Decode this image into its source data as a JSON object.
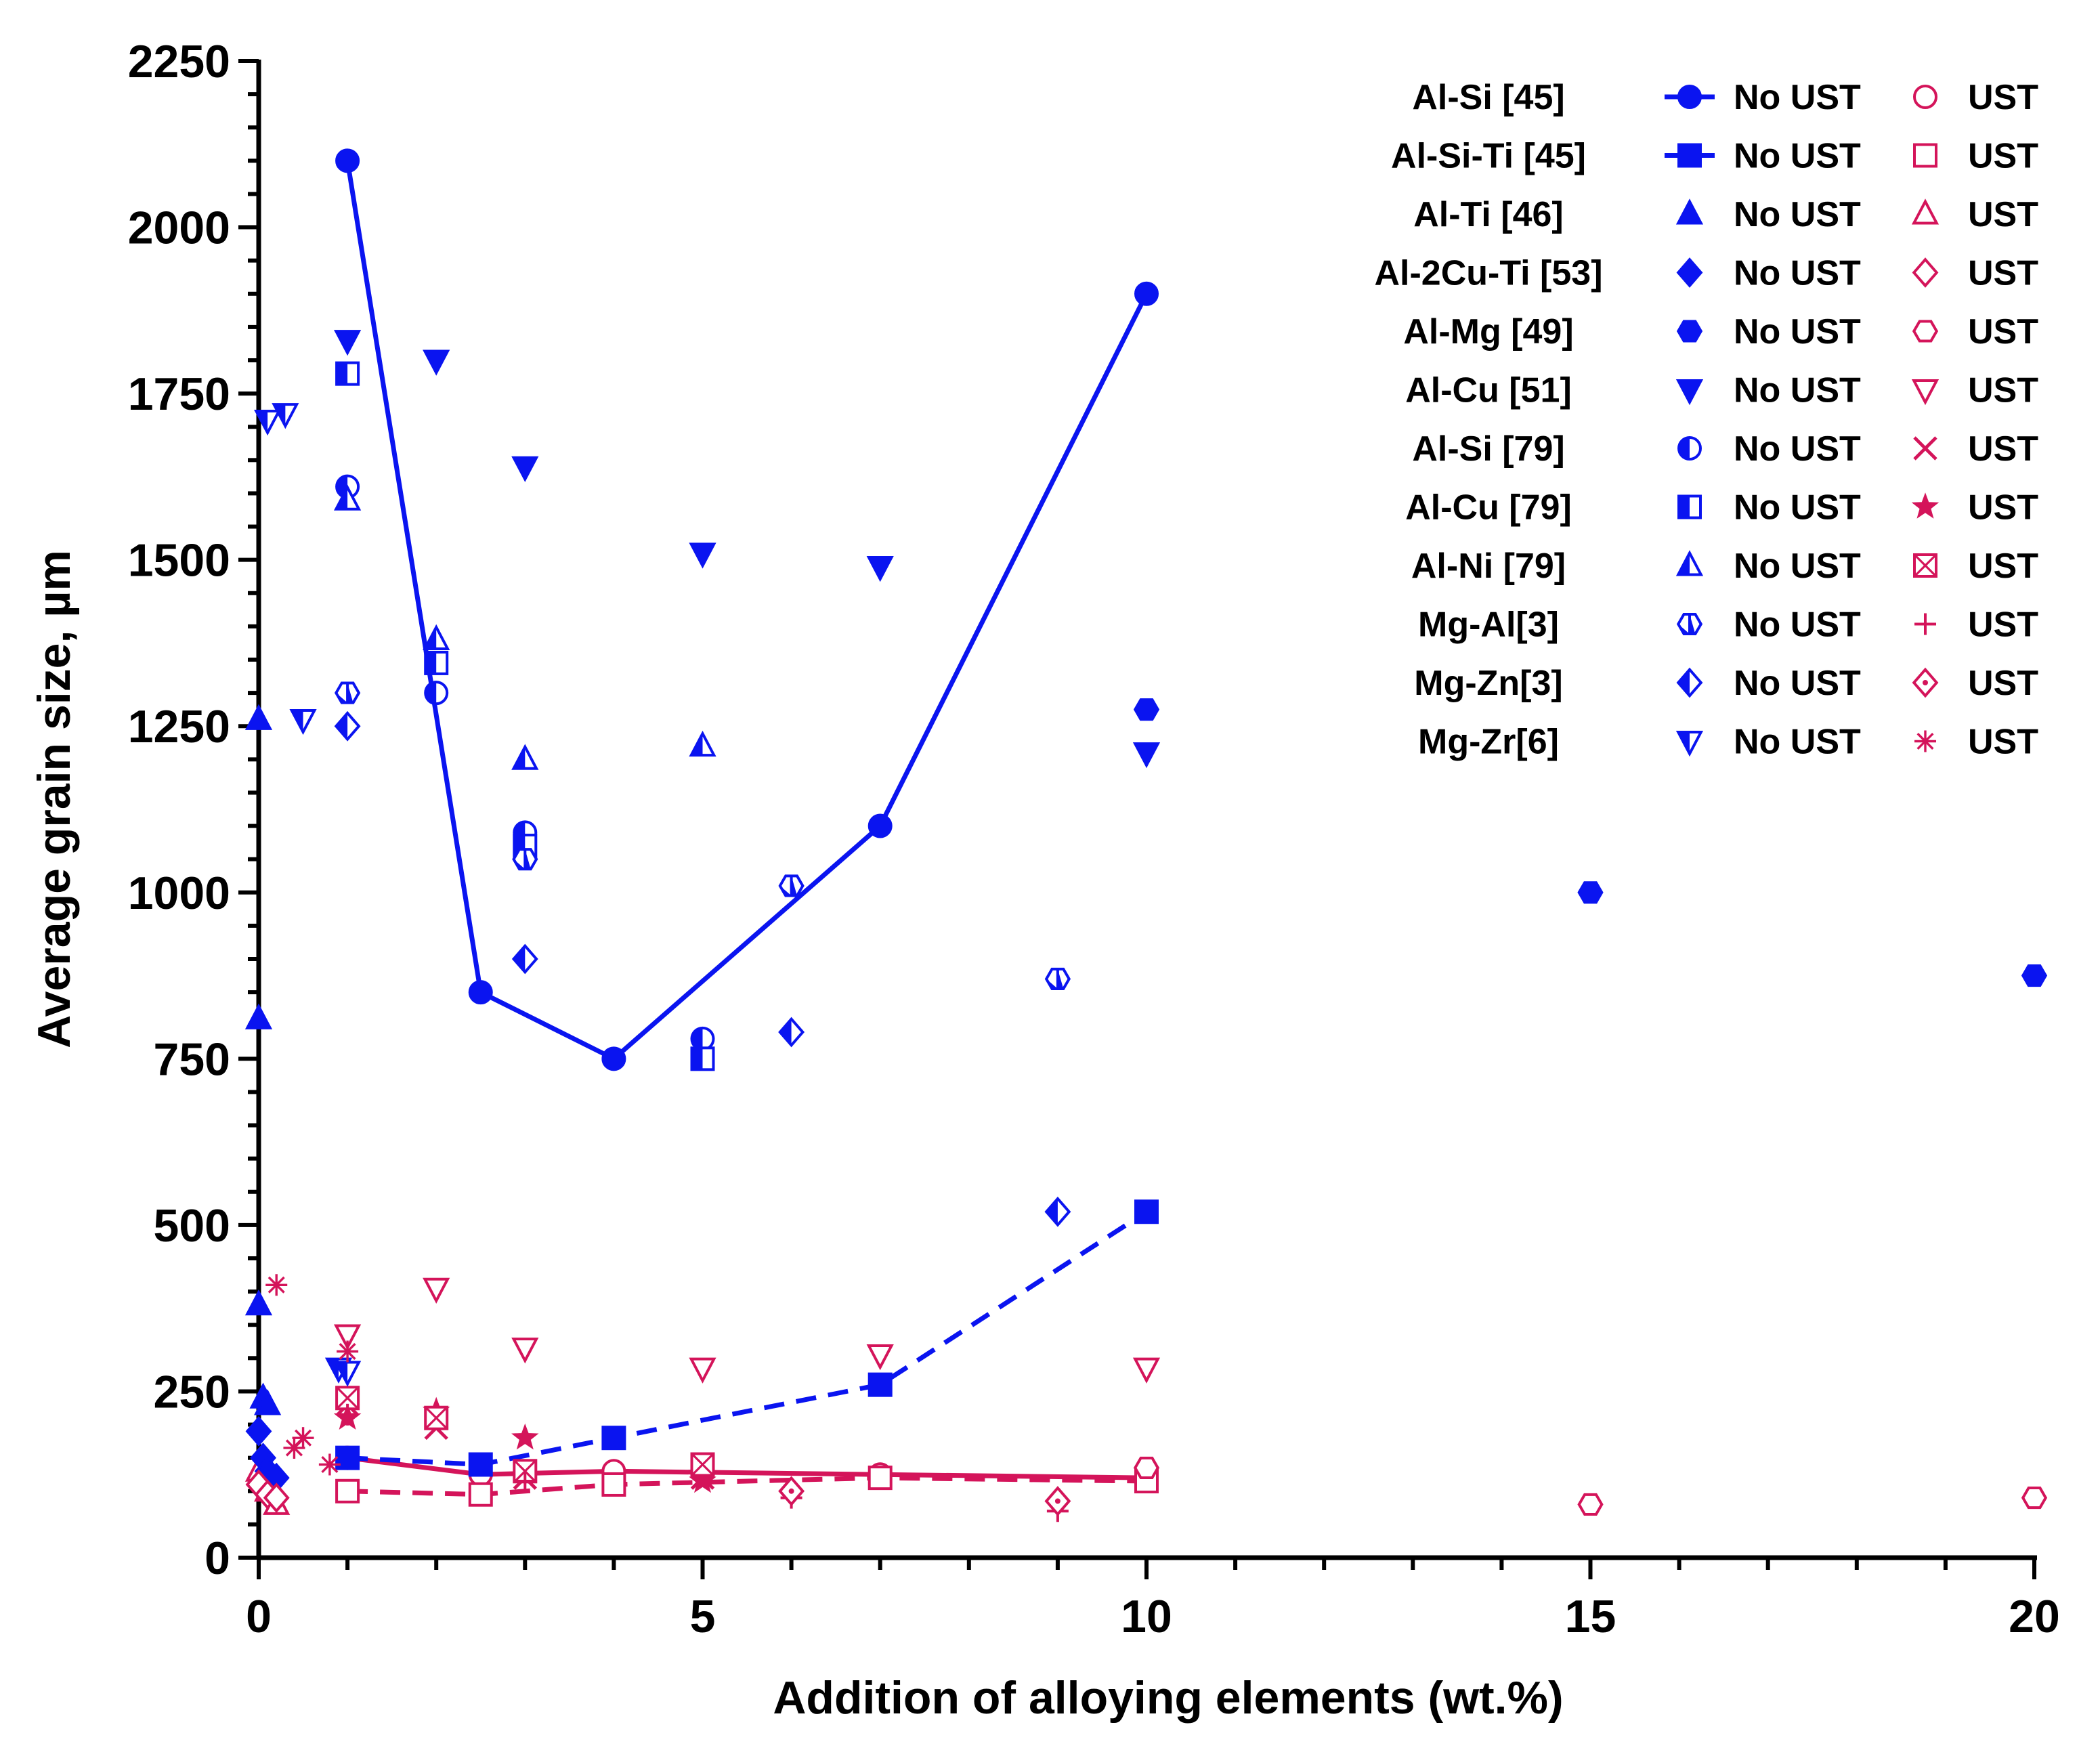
{
  "chart_data": {
    "type": "scatter",
    "title": "",
    "xlabel": "Addition of alloying elements (wt.%)",
    "ylabel": "Average grain size, µm",
    "xlim": [
      0,
      20
    ],
    "ylim": [
      0,
      2250
    ],
    "xticks": [
      "0",
      "5",
      "10",
      "15",
      "20"
    ],
    "yticks": [
      "0",
      "250",
      "500",
      "750",
      "1000",
      "1250",
      "1500",
      "1750",
      "2000",
      "2250"
    ],
    "grid": false,
    "legend_position": "top-right",
    "colors": {
      "no_ust": "#0a14f0",
      "ust": "#d4145a"
    },
    "series": [
      {
        "name": "Al-Si [45]",
        "key": "alsi45",
        "label": "No UST",
        "marker": "circle",
        "fill": "solid",
        "color": "#0a14f0",
        "line": "solid",
        "x": [
          1,
          2.5,
          4,
          7,
          10
        ],
        "y": [
          2100,
          850,
          750,
          1100,
          1900
        ]
      },
      {
        "name": "Al-Si [45]",
        "key": "alsi45-ust",
        "label": "UST",
        "marker": "circle",
        "fill": "open",
        "color": "#d4145a",
        "line": "solid",
        "x": [
          1,
          2.5,
          4,
          7,
          10
        ],
        "y": [
          150,
          125,
          130,
          125,
          120
        ]
      },
      {
        "name": "Al-Si-Ti [45]",
        "key": "alsiti45",
        "label": "No UST",
        "marker": "square",
        "fill": "solid",
        "color": "#0a14f0",
        "line": "dashed",
        "x": [
          1,
          2.5,
          4,
          7,
          10
        ],
        "y": [
          150,
          140,
          180,
          260,
          520
        ]
      },
      {
        "name": "Al-Si-Ti [45]",
        "key": "alsiti45-ust",
        "label": "UST",
        "marker": "square",
        "fill": "open",
        "color": "#d4145a",
        "line": "dashed",
        "x": [
          1,
          2.5,
          4,
          7,
          10
        ],
        "y": [
          100,
          95,
          110,
          120,
          115
        ]
      },
      {
        "name": "Al-Ti [46]",
        "key": "alti46",
        "label": "No UST",
        "marker": "triangle",
        "fill": "solid",
        "color": "#0a14f0",
        "line": "none",
        "x": [
          0,
          0,
          0,
          0.05,
          0.1
        ],
        "y": [
          1260,
          810,
          380,
          240,
          230
        ]
      },
      {
        "name": "Al-Ti [46]",
        "key": "alti46-ust",
        "label": "UST",
        "marker": "triangle",
        "fill": "open",
        "color": "#d4145a",
        "line": "none",
        "x": [
          0,
          0.1,
          0.2
        ],
        "y": [
          130,
          100,
          80
        ]
      },
      {
        "name": "Al-2Cu-Ti [53]",
        "key": "al2cuti53",
        "label": "No UST",
        "marker": "diamond",
        "fill": "solid",
        "color": "#0a14f0",
        "line": "none",
        "x": [
          0,
          0.05,
          0.1,
          0.2
        ],
        "y": [
          190,
          150,
          130,
          120
        ]
      },
      {
        "name": "Al-2Cu-Ti [53]",
        "key": "al2cuti53-ust",
        "label": "UST",
        "marker": "diamond",
        "fill": "open",
        "color": "#d4145a",
        "line": "none",
        "x": [
          0,
          0.1,
          0.2
        ],
        "y": [
          110,
          95,
          90
        ]
      },
      {
        "name": "Al-Mg [49]",
        "key": "almg49",
        "label": "No UST",
        "marker": "hexagon",
        "fill": "solid",
        "color": "#0a14f0",
        "line": "none",
        "x": [
          10,
          15,
          20
        ],
        "y": [
          1275,
          1000,
          875
        ]
      },
      {
        "name": "Al-Mg [49]",
        "key": "almg49-ust",
        "label": "UST",
        "marker": "hexagon",
        "fill": "open",
        "color": "#d4145a",
        "line": "none",
        "x": [
          10,
          15,
          20
        ],
        "y": [
          135,
          80,
          90
        ]
      },
      {
        "name": "Al-Cu [51]",
        "key": "alcu51",
        "label": "No UST",
        "marker": "triangle-down",
        "fill": "solid",
        "color": "#0a14f0",
        "line": "none",
        "x": [
          1,
          2,
          3,
          5,
          7,
          10
        ],
        "y": [
          1830,
          1800,
          1640,
          1510,
          1490,
          1210
        ]
      },
      {
        "name": "Al-Cu [51]",
        "key": "alcu51-ust",
        "label": "UST",
        "marker": "triangle-down",
        "fill": "open",
        "color": "#d4145a",
        "line": "none",
        "x": [
          1,
          2,
          3,
          5,
          7,
          10
        ],
        "y": [
          335,
          405,
          315,
          285,
          305,
          285
        ]
      },
      {
        "name": "Al-Si [79]",
        "key": "alsi79",
        "label": "No UST",
        "marker": "circle",
        "fill": "half",
        "color": "#0a14f0",
        "line": "none",
        "x": [
          1,
          2,
          3,
          5
        ],
        "y": [
          1610,
          1300,
          1090,
          780
        ]
      },
      {
        "name": "Al-Si [79]",
        "key": "alsi79-ust",
        "label": "UST",
        "marker": "x",
        "fill": "open",
        "color": "#d4145a",
        "line": "none",
        "x": [
          1,
          2,
          3,
          5
        ],
        "y": [
          230,
          195,
          120,
          120
        ]
      },
      {
        "name": "Al-Cu [79]",
        "key": "alcu79",
        "label": "No UST",
        "marker": "square",
        "fill": "half",
        "color": "#0a14f0",
        "line": "none",
        "x": [
          1,
          2,
          3,
          5
        ],
        "y": [
          1780,
          1345,
          1070,
          750
        ]
      },
      {
        "name": "Al-Cu [79]",
        "key": "alcu79-ust",
        "label": "UST",
        "marker": "star",
        "fill": "solid",
        "color": "#d4145a",
        "line": "none",
        "x": [
          1,
          2,
          3,
          5
        ],
        "y": [
          210,
          220,
          180,
          115
        ]
      },
      {
        "name": "Al-Ni [79]",
        "key": "alni79",
        "label": "No UST",
        "marker": "triangle",
        "fill": "half",
        "color": "#0a14f0",
        "line": "none",
        "x": [
          1,
          2,
          3,
          5
        ],
        "y": [
          1590,
          1380,
          1200,
          1220
        ]
      },
      {
        "name": "Al-Ni [79]",
        "key": "alni79-ust",
        "label": "UST",
        "marker": "square-x",
        "fill": "open",
        "color": "#d4145a",
        "line": "none",
        "x": [
          1,
          2,
          3,
          5
        ],
        "y": [
          240,
          210,
          130,
          140
        ]
      },
      {
        "name": "Mg-Al[3]",
        "key": "mgal3",
        "label": "No UST",
        "marker": "hexagon",
        "fill": "half",
        "color": "#0a14f0",
        "line": "none",
        "x": [
          1,
          3,
          6,
          9
        ],
        "y": [
          1300,
          1050,
          1010,
          870
        ]
      },
      {
        "name": "Mg-Al[3]",
        "key": "mgal3-ust",
        "label": "UST",
        "marker": "plus",
        "fill": "open",
        "color": "#d4145a",
        "line": "none",
        "x": [
          1,
          3,
          6,
          9
        ],
        "y": [
          215,
          115,
          90,
          70
        ]
      },
      {
        "name": "Mg-Zn[3]",
        "key": "mgzn3",
        "label": "No UST",
        "marker": "diamond",
        "fill": "half",
        "color": "#0a14f0",
        "line": "none",
        "x": [
          1,
          3,
          6,
          9
        ],
        "y": [
          1250,
          900,
          790,
          520
        ]
      },
      {
        "name": "Mg-Zn[3]",
        "key": "mgzn3-ust",
        "label": "UST",
        "marker": "diamond-dot",
        "fill": "open",
        "color": "#d4145a",
        "line": "none",
        "x": [
          6,
          9
        ],
        "y": [
          100,
          85
        ]
      },
      {
        "name": "Mg-Zr[6]",
        "key": "mgzr6",
        "label": "No UST",
        "marker": "triangle-down",
        "fill": "half",
        "color": "#0a14f0",
        "line": "none",
        "x": [
          0.1,
          0.3,
          0.5,
          0.9,
          1
        ],
        "y": [
          1710,
          1720,
          1260,
          285,
          280
        ]
      },
      {
        "name": "Mg-Zr[6]",
        "key": "mgzr6-ust",
        "label": "UST",
        "marker": "asterisk",
        "fill": "open",
        "color": "#d4145a",
        "line": "none",
        "x": [
          0.2,
          0.4,
          0.5,
          0.8,
          1
        ],
        "y": [
          410,
          165,
          180,
          140,
          310
        ]
      }
    ],
    "legend": [
      {
        "name": "Al-Si [45]",
        "no_ust": "No UST",
        "ust": "UST",
        "no_marker": "circle",
        "no_fill": "solid",
        "ust_marker": "circle",
        "ust_fill": "open",
        "line": true
      },
      {
        "name": "Al-Si-Ti [45]",
        "no_ust": "No UST",
        "ust": "UST",
        "no_marker": "square",
        "no_fill": "solid",
        "ust_marker": "square",
        "ust_fill": "open",
        "line": true
      },
      {
        "name": "Al-Ti [46]",
        "no_ust": "No UST",
        "ust": "UST",
        "no_marker": "triangle",
        "no_fill": "solid",
        "ust_marker": "triangle",
        "ust_fill": "open",
        "line": false
      },
      {
        "name": "Al-2Cu-Ti [53]",
        "no_ust": "No UST",
        "ust": "UST",
        "no_marker": "diamond",
        "no_fill": "solid",
        "ust_marker": "diamond",
        "ust_fill": "open",
        "line": false
      },
      {
        "name": "Al-Mg [49]",
        "no_ust": "No UST",
        "ust": "UST",
        "no_marker": "hexagon",
        "no_fill": "solid",
        "ust_marker": "hexagon",
        "ust_fill": "open",
        "line": false
      },
      {
        "name": "Al-Cu [51]",
        "no_ust": "No UST",
        "ust": "UST",
        "no_marker": "triangle-down",
        "no_fill": "solid",
        "ust_marker": "triangle-down",
        "ust_fill": "open",
        "line": false
      },
      {
        "name": "Al-Si [79]",
        "no_ust": "No UST",
        "ust": "UST",
        "no_marker": "circle",
        "no_fill": "half",
        "ust_marker": "x",
        "ust_fill": "open",
        "line": false
      },
      {
        "name": "Al-Cu [79]",
        "no_ust": "No UST",
        "ust": "UST",
        "no_marker": "square",
        "no_fill": "half",
        "ust_marker": "star",
        "ust_fill": "solid",
        "line": false
      },
      {
        "name": "Al-Ni [79]",
        "no_ust": "No UST",
        "ust": "UST",
        "no_marker": "triangle",
        "no_fill": "half",
        "ust_marker": "square-x",
        "ust_fill": "open",
        "line": false
      },
      {
        "name": "Mg-Al[3]",
        "no_ust": "No UST",
        "ust": "UST",
        "no_marker": "hexagon",
        "no_fill": "half",
        "ust_marker": "plus",
        "ust_fill": "open",
        "line": false
      },
      {
        "name": "Mg-Zn[3]",
        "no_ust": "No UST",
        "ust": "UST",
        "no_marker": "diamond",
        "no_fill": "half",
        "ust_marker": "diamond-dot",
        "ust_fill": "open",
        "line": false
      },
      {
        "name": "Mg-Zr[6]",
        "no_ust": "No UST",
        "ust": "UST",
        "no_marker": "triangle-down",
        "no_fill": "half",
        "ust_marker": "asterisk",
        "ust_fill": "open",
        "line": false
      }
    ]
  }
}
